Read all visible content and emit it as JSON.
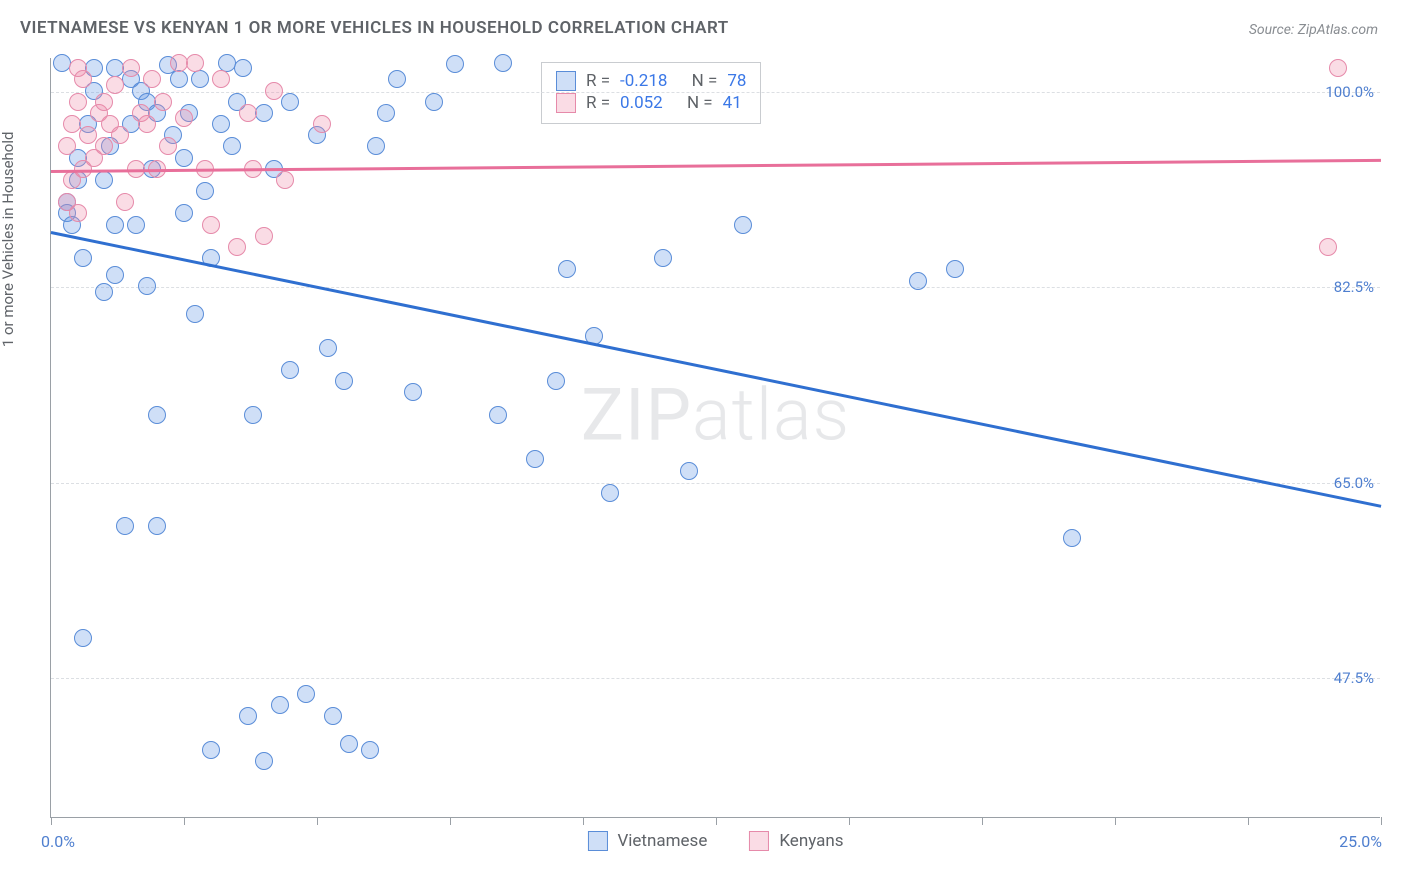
{
  "title": "VIETNAMESE VS KENYAN 1 OR MORE VEHICLES IN HOUSEHOLD CORRELATION CHART",
  "source": "Source: ZipAtlas.com",
  "ylabel": "1 or more Vehicles in Household",
  "watermark_bold": "ZIP",
  "watermark_thin": "atlas",
  "chart": {
    "type": "scatter",
    "background_color": "#ffffff",
    "axis_color": "#9aa0a6",
    "grid_color": "#dcdfe3",
    "label_color": "#5f6368",
    "value_color": "#4f7fcf",
    "xlim": [
      0.0,
      25.0
    ],
    "ylim": [
      35.0,
      103.0
    ],
    "xtick_positions": [
      0,
      2.5,
      5,
      7.5,
      10,
      12.5,
      15,
      17.5,
      20,
      22.5,
      25
    ],
    "yticks": [
      47.5,
      65.0,
      82.5,
      100.0
    ],
    "ytick_labels": [
      "47.5%",
      "65.0%",
      "82.5%",
      "100.0%"
    ],
    "x_min_label": "0.0%",
    "x_max_label": "25.0%",
    "marker_radius": 9,
    "marker_stroke": 1.5,
    "trend_line_width": 2.5,
    "series": [
      {
        "name": "Vietnamese",
        "fill": "rgba(96,150,230,0.30)",
        "stroke": "#5a8dd8",
        "trend_color": "#2f6fd0",
        "trend_y_at_xmin": 87.5,
        "trend_y_at_xmax": 63.0,
        "R": "-0.218",
        "N": "78",
        "points": [
          [
            0.2,
            102.5
          ],
          [
            0.3,
            90
          ],
          [
            0.3,
            89
          ],
          [
            0.4,
            88
          ],
          [
            0.5,
            92
          ],
          [
            0.5,
            94
          ],
          [
            0.6,
            85
          ],
          [
            0.6,
            51
          ],
          [
            0.7,
            97
          ],
          [
            0.8,
            100
          ],
          [
            0.8,
            102
          ],
          [
            1.0,
            92
          ],
          [
            1.0,
            82
          ],
          [
            1.1,
            95
          ],
          [
            1.2,
            88
          ],
          [
            1.2,
            83.5
          ],
          [
            1.2,
            102
          ],
          [
            1.4,
            61
          ],
          [
            1.5,
            101
          ],
          [
            1.5,
            97
          ],
          [
            1.6,
            88
          ],
          [
            1.7,
            100
          ],
          [
            1.8,
            99
          ],
          [
            1.8,
            82.5
          ],
          [
            1.9,
            93
          ],
          [
            2.0,
            71
          ],
          [
            2.0,
            61
          ],
          [
            2.0,
            98
          ],
          [
            2.2,
            102.3
          ],
          [
            2.3,
            96
          ],
          [
            2.4,
            101
          ],
          [
            2.5,
            94
          ],
          [
            2.5,
            89
          ],
          [
            2.6,
            98
          ],
          [
            2.7,
            80
          ],
          [
            2.8,
            101
          ],
          [
            2.9,
            91
          ],
          [
            3.0,
            85
          ],
          [
            3.0,
            41
          ],
          [
            3.2,
            97
          ],
          [
            3.3,
            102.5
          ],
          [
            3.4,
            95
          ],
          [
            3.5,
            99
          ],
          [
            3.6,
            102
          ],
          [
            3.7,
            44
          ],
          [
            3.8,
            71
          ],
          [
            4.0,
            98
          ],
          [
            4.0,
            40
          ],
          [
            4.2,
            93
          ],
          [
            4.3,
            45
          ],
          [
            4.5,
            99
          ],
          [
            4.5,
            75
          ],
          [
            4.8,
            46
          ],
          [
            5.0,
            96
          ],
          [
            5.2,
            77
          ],
          [
            5.3,
            44
          ],
          [
            5.5,
            74
          ],
          [
            5.6,
            41.5
          ],
          [
            6.0,
            41
          ],
          [
            6.1,
            95
          ],
          [
            6.3,
            98
          ],
          [
            6.5,
            101
          ],
          [
            6.8,
            73
          ],
          [
            7.2,
            99
          ],
          [
            7.6,
            102.4
          ],
          [
            8.4,
            71
          ],
          [
            8.5,
            102.5
          ],
          [
            9.1,
            67
          ],
          [
            9.5,
            74
          ],
          [
            9.7,
            84
          ],
          [
            10.2,
            78
          ],
          [
            10.5,
            64
          ],
          [
            11.5,
            85
          ],
          [
            12.0,
            66
          ],
          [
            13.0,
            88
          ],
          [
            16.3,
            83
          ],
          [
            17.0,
            84
          ],
          [
            19.2,
            60
          ]
        ]
      },
      {
        "name": "Kenyans",
        "fill": "rgba(240,140,170,0.30)",
        "stroke": "#e68aaa",
        "trend_color": "#e86f9a",
        "trend_y_at_xmin": 93.0,
        "trend_y_at_xmax": 94.0,
        "R": "0.052",
        "N": "41",
        "points": [
          [
            0.3,
            90
          ],
          [
            0.3,
            95
          ],
          [
            0.4,
            92
          ],
          [
            0.4,
            97
          ],
          [
            0.5,
            102
          ],
          [
            0.5,
            89
          ],
          [
            0.5,
            99
          ],
          [
            0.6,
            93
          ],
          [
            0.6,
            101
          ],
          [
            0.7,
            96
          ],
          [
            0.8,
            94
          ],
          [
            0.9,
            98
          ],
          [
            1.0,
            99
          ],
          [
            1.0,
            95
          ],
          [
            1.1,
            97
          ],
          [
            1.2,
            100.5
          ],
          [
            1.3,
            96
          ],
          [
            1.4,
            90
          ],
          [
            1.5,
            102
          ],
          [
            1.6,
            93
          ],
          [
            1.7,
            98
          ],
          [
            1.8,
            97
          ],
          [
            1.9,
            101
          ],
          [
            2.0,
            93
          ],
          [
            2.1,
            99
          ],
          [
            2.2,
            95
          ],
          [
            2.4,
            102.5
          ],
          [
            2.5,
            97.5
          ],
          [
            2.7,
            102.5
          ],
          [
            2.9,
            93
          ],
          [
            3.0,
            88
          ],
          [
            3.2,
            101
          ],
          [
            3.5,
            86
          ],
          [
            3.7,
            98
          ],
          [
            3.8,
            93
          ],
          [
            4.0,
            87
          ],
          [
            4.2,
            100
          ],
          [
            4.4,
            92
          ],
          [
            5.1,
            97
          ],
          [
            24.0,
            86
          ],
          [
            24.2,
            102
          ]
        ]
      }
    ],
    "legend": {
      "series1": "Vietnamese",
      "series2": "Kenyans"
    },
    "stats_labels": {
      "R": "R =",
      "N": "N ="
    }
  }
}
